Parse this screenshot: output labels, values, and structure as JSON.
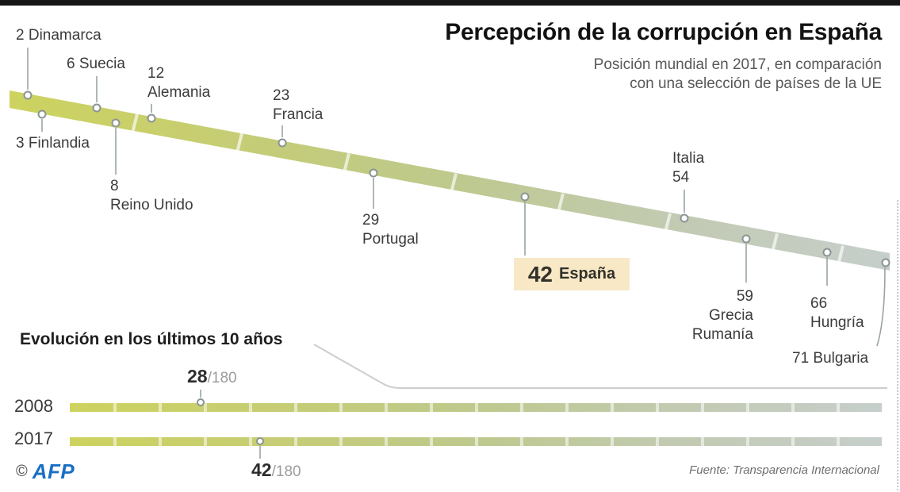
{
  "header": {
    "title": "Percepción de la corrupción en España",
    "subtitle_line1": "Posición mundial en 2017, en comparación",
    "subtitle_line2": "con una selección de países de la UE"
  },
  "ranking": {
    "markers": [
      {
        "lines": [
          "2 Dinamarca"
        ]
      },
      {
        "lines": [
          "3 Finlandia"
        ]
      },
      {
        "lines": [
          "6 Suecia"
        ]
      },
      {
        "lines": [
          "8",
          "Reino Unido"
        ]
      },
      {
        "lines": [
          "12",
          "Alemania"
        ]
      },
      {
        "lines": [
          "23",
          "Francia"
        ]
      },
      {
        "lines": [
          "29",
          "Portugal"
        ]
      },
      {
        "highlight": true,
        "rank": "42",
        "name": "España"
      },
      {
        "lines": [
          "Italia",
          "54"
        ]
      },
      {
        "lines": [
          "59",
          "Grecia",
          "Rumanía"
        ]
      },
      {
        "lines": [
          "66",
          "Hungría"
        ]
      },
      {
        "lines": [
          "71 Bulgaria"
        ]
      }
    ],
    "highlight_bg": "#f8e8c5"
  },
  "evolution": {
    "heading": "Evolución en los últimos 10 años",
    "rows": [
      {
        "year": "2008",
        "value": "28",
        "of": "/180"
      },
      {
        "year": "2017",
        "value": "42",
        "of": "/180"
      }
    ]
  },
  "footer": {
    "copyright": "©",
    "agency": "AFP",
    "source": "Fuente: Transparencia Internacional"
  },
  "colors": {
    "band_left": "#cdd35e",
    "band_mid": "#bec98d",
    "band_right": "#c6cecb",
    "accent_blue": "#1b6fc3",
    "highlight_bg": "#f8e8c5"
  },
  "chart_data": [
    {
      "type": "scatter",
      "title": "Percepción de la corrupción en España",
      "subtitle": "Posición mundial en 2017, en comparación con una selección de países de la UE",
      "xlabel": "posición mundial 2017",
      "axis_range_shown": [
        2,
        71
      ],
      "points": [
        {
          "pais": "Dinamarca",
          "posicion": 2
        },
        {
          "pais": "Finlandia",
          "posicion": 3
        },
        {
          "pais": "Suecia",
          "posicion": 6
        },
        {
          "pais": "Reino Unido",
          "posicion": 8
        },
        {
          "pais": "Alemania",
          "posicion": 12
        },
        {
          "pais": "Francia",
          "posicion": 23
        },
        {
          "pais": "Portugal",
          "posicion": 29
        },
        {
          "pais": "España",
          "posicion": 42,
          "highlight": true
        },
        {
          "pais": "Italia",
          "posicion": 54
        },
        {
          "pais": "Grecia",
          "posicion": 59
        },
        {
          "pais": "Rumanía",
          "posicion": 59
        },
        {
          "pais": "Hungría",
          "posicion": 66
        },
        {
          "pais": "Bulgaria",
          "posicion": 71
        }
      ]
    },
    {
      "type": "bar",
      "title": "Evolución en los últimos 10 años",
      "categories": [
        "2008",
        "2017"
      ],
      "values": [
        28,
        42
      ],
      "scale_max": 180
    }
  ]
}
